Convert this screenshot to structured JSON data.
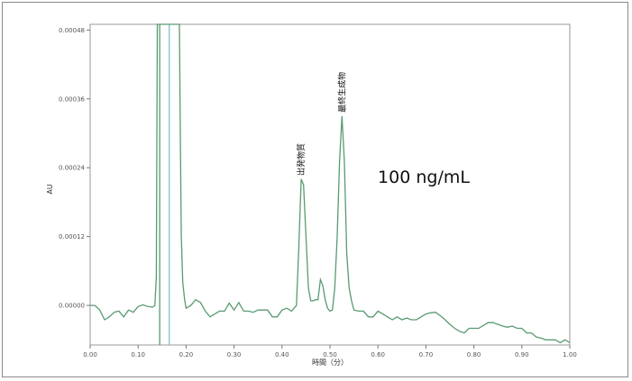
{
  "chart_data": {
    "type": "line",
    "title": "",
    "xlabel": "時間（分）",
    "ylabel": "AU",
    "xlim": [
      0.0,
      1.0
    ],
    "ylim": [
      -6.9e-05,
      0.00049
    ],
    "x_ticks": [
      "0.00",
      "0.10",
      "0.20",
      "0.30",
      "0.40",
      "0.50",
      "0.60",
      "0.70",
      "0.80",
      "0.90",
      "1.00"
    ],
    "y_ticks": [
      {
        "value": 0.0,
        "label": "0.00000"
      },
      {
        "value": 0.00012,
        "label": "0.00012"
      },
      {
        "value": 0.00024,
        "label": "0.00024"
      },
      {
        "value": 0.00036,
        "label": "0.00036"
      },
      {
        "value": 0.00048,
        "label": "0.00048"
      }
    ],
    "grid": false,
    "line_color": "#5a9a72",
    "marker_line_color": "#7fbfd6",
    "annotation": "100 ng/mL",
    "peaks": [
      {
        "label": "出発物質",
        "x": 0.44,
        "y": 0.00022
      },
      {
        "label": "最終生成物",
        "x": 0.525,
        "y": 0.00033
      }
    ],
    "series": [
      {
        "x": [
          0.0,
          0.01,
          0.02,
          0.03,
          0.04,
          0.05,
          0.06,
          0.07,
          0.08,
          0.09,
          0.1,
          0.11,
          0.12,
          0.13,
          0.135,
          0.138,
          0.14,
          0.142,
          0.145,
          0.147,
          0.149,
          0.151,
          0.153,
          0.155,
          0.158,
          0.162,
          0.166,
          0.17,
          0.174,
          0.178,
          0.181,
          0.184,
          0.186,
          0.188,
          0.19,
          0.193,
          0.197,
          0.2,
          0.21,
          0.22,
          0.23,
          0.24,
          0.25,
          0.26,
          0.27,
          0.28,
          0.29,
          0.3,
          0.31,
          0.32,
          0.33,
          0.34,
          0.35,
          0.36,
          0.37,
          0.38,
          0.39,
          0.4,
          0.41,
          0.42,
          0.43,
          0.435,
          0.44,
          0.445,
          0.45,
          0.455,
          0.46,
          0.465,
          0.47,
          0.475,
          0.48,
          0.485,
          0.49,
          0.495,
          0.5,
          0.505,
          0.51,
          0.515,
          0.52,
          0.525,
          0.53,
          0.535,
          0.54,
          0.545,
          0.55,
          0.56,
          0.57,
          0.58,
          0.59,
          0.6,
          0.61,
          0.62,
          0.63,
          0.64,
          0.65,
          0.66,
          0.67,
          0.68,
          0.69,
          0.7,
          0.71,
          0.72,
          0.73,
          0.74,
          0.75,
          0.76,
          0.77,
          0.78,
          0.79,
          0.8,
          0.81,
          0.82,
          0.83,
          0.84,
          0.85,
          0.86,
          0.87,
          0.88,
          0.89,
          0.9,
          0.91,
          0.92,
          0.93,
          0.94,
          0.95,
          0.96,
          0.97,
          0.98,
          0.99,
          1.0
        ],
        "y": [
          0.0,
          0.0,
          -8e-06,
          -2.5e-05,
          -2e-05,
          -1.2e-05,
          -1e-05,
          -2e-05,
          -8e-06,
          -1.2e-05,
          -2e-06,
          1e-06,
          -2e-06,
          -3e-06,
          0.0,
          5e-05,
          0.00049,
          0.00049,
          0.00049,
          0.00049,
          0.00049,
          0.00049,
          0.00049,
          0.00049,
          0.00049,
          0.00049,
          0.00049,
          0.00049,
          0.00049,
          0.00049,
          0.00049,
          0.00049,
          0.00049,
          0.0003,
          0.00012,
          4e-05,
          1e-05,
          -5e-06,
          0.0,
          1e-05,
          5e-06,
          -1e-05,
          -2e-05,
          -1.5e-05,
          -1e-05,
          -1e-05,
          4e-06,
          -8e-06,
          5e-06,
          -1e-05,
          -1e-05,
          -1.2e-05,
          -8e-06,
          -8e-06,
          -8e-06,
          -2e-05,
          -2e-05,
          -8e-06,
          -5e-06,
          -1e-05,
          0.0,
          0.0001,
          0.00022,
          0.00021,
          0.00012,
          3e-05,
          8e-06,
          8e-06,
          1e-05,
          1e-05,
          4.5e-05,
          3.5e-05,
          1e-05,
          -5e-06,
          -1e-05,
          -8e-06,
          3e-05,
          0.00012,
          0.00025,
          0.00033,
          0.00025,
          9e-05,
          3e-05,
          8e-06,
          -8e-06,
          -1e-05,
          -1e-05,
          -2e-05,
          -2e-05,
          -1e-05,
          -1.5e-05,
          -2e-05,
          -2.5e-05,
          -2e-05,
          -2.5e-05,
          -2.2e-05,
          -2.5e-05,
          -2.5e-05,
          -2e-05,
          -1.5e-05,
          -1.3e-05,
          -1.2e-05,
          -1.8e-05,
          -2.5e-05,
          -3.3e-05,
          -4e-05,
          -4.5e-05,
          -4.8e-05,
          -4e-05,
          -4e-05,
          -4e-05,
          -3.5e-05,
          -3e-05,
          -3e-05,
          -3.3e-05,
          -3.6e-05,
          -3.8e-05,
          -3.6e-05,
          -4e-05,
          -4e-05,
          -4.8e-05,
          -4.8e-05,
          -5.5e-05,
          -5.7e-05,
          -6e-05,
          -6e-05,
          -6e-05,
          -6.5e-05,
          -6e-05,
          -6.5e-05
        ]
      }
    ]
  }
}
